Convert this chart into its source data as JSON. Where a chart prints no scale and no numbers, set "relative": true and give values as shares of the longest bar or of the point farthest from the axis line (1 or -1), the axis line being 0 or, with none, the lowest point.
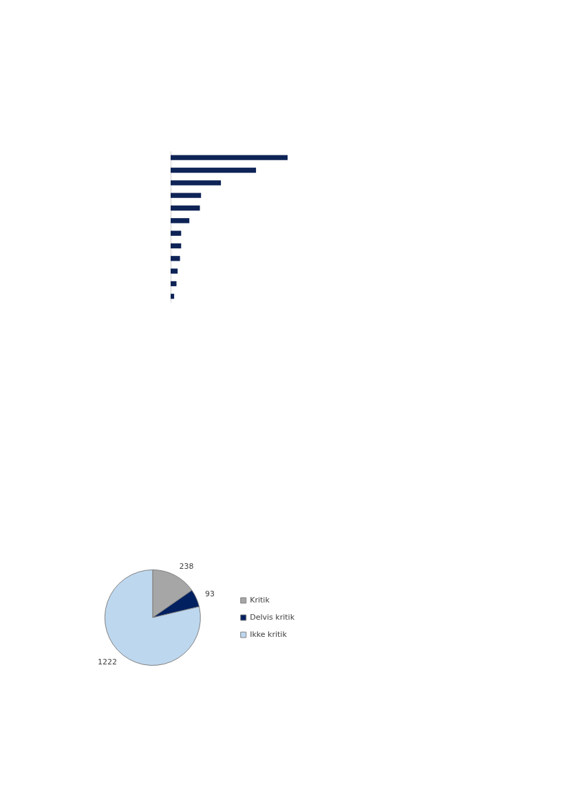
{
  "chart_data": [
    {
      "type": "bar",
      "orientation": "horizontal",
      "relative": true,
      "categories": [
        null,
        null,
        null,
        null,
        null,
        null,
        null,
        null,
        null,
        null,
        null,
        null
      ],
      "values": [
        1,
        0.73,
        0.43,
        0.26,
        0.25,
        0.16,
        0.09,
        0.09,
        0.08,
        0.06,
        0.05,
        0.03
      ],
      "color": "#0e2356",
      "legend": false
    },
    {
      "type": "pie",
      "categories": [
        "Kritik",
        "Delvis kritik",
        "Ikke kritik"
      ],
      "values": [
        238,
        93,
        1222
      ],
      "colors": [
        "#a6a6a6",
        "#002060",
        "#bdd7ee"
      ],
      "data_labels": true,
      "legend": "right"
    }
  ]
}
